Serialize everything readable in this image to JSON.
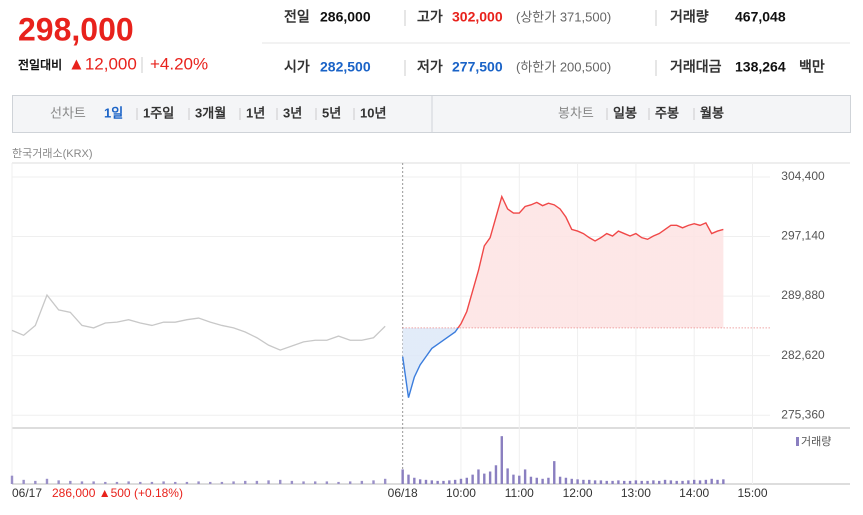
{
  "header": {
    "price": "298,000",
    "change_label": "전일대비",
    "change": "▲12,000",
    "change_pct": "+4.20%",
    "stats": [
      {
        "label": "전일",
        "value": "286,000"
      },
      {
        "label": "고가",
        "value": "302,000",
        "note": "(상한가 371,500)"
      },
      {
        "label": "거래량",
        "value": "467,048"
      },
      {
        "label": "시가",
        "value": "282,500"
      },
      {
        "label": "저가",
        "value": "277,500",
        "note": "(하한가 200,500)"
      },
      {
        "label": "거래대금",
        "value": "138,264",
        "unit": "백만"
      }
    ]
  },
  "tabs": {
    "left_title": "선차트",
    "left": [
      "1일",
      "1주일",
      "3개월",
      "1년",
      "3년",
      "5년",
      "10년"
    ],
    "selected": "1일",
    "right_title": "봉차트",
    "right": [
      "일봉",
      "주봉",
      "월봉"
    ]
  },
  "chart_data": [
    {
      "type": "line",
      "source": "한국거래소(KRX)",
      "annotation": "286,000 ▲500 (+0.18%)",
      "xlim": [
        2.3,
        15.3
      ],
      "xticks": [
        {
          "value": 2.3,
          "label": "06/17"
        },
        {
          "value": 9,
          "label": "06/18"
        },
        {
          "value": 10,
          "label": "10:00"
        },
        {
          "value": 11,
          "label": "11:00"
        },
        {
          "value": 12,
          "label": "12:00"
        },
        {
          "value": 13,
          "label": "13:00"
        },
        {
          "value": 14,
          "label": "14:00"
        },
        {
          "value": 15,
          "label": "15:00"
        }
      ],
      "ylim": [
        273800,
        306100
      ],
      "yticks": [
        {
          "value": 304400,
          "label": "304,400"
        },
        {
          "value": 297140,
          "label": "297,140"
        },
        {
          "value": 289880,
          "label": "289,880"
        },
        {
          "value": 282620,
          "label": "282,620"
        },
        {
          "value": 275360,
          "label": "275,360"
        }
      ],
      "grid": true,
      "reference": 286000,
      "reference_color": "#e77b7b",
      "series": [
        {
          "color": "#c8c8c8",
          "x": [
            2.3,
            2.5,
            2.7,
            2.9,
            3.1,
            3.3,
            3.5,
            3.7,
            3.9,
            4.1,
            4.3,
            4.5,
            4.7,
            4.9,
            5.1,
            5.3,
            5.5,
            5.7,
            5.9,
            6.1,
            6.3,
            6.5,
            6.7,
            6.9,
            7.1,
            7.3,
            7.5,
            7.7,
            7.9,
            8.1,
            8.3,
            8.5,
            8.7
          ],
          "values": [
            285700,
            285100,
            286300,
            290000,
            288200,
            287900,
            286300,
            286000,
            286600,
            286700,
            287000,
            286600,
            286300,
            286700,
            286700,
            287000,
            287200,
            286700,
            286300,
            286000,
            285500,
            284800,
            283900,
            283300,
            283800,
            284300,
            284500,
            284500,
            285000,
            284500,
            284500,
            284800,
            286200
          ]
        },
        {
          "color_up": "#f04848",
          "color_down": "#3b7ddd",
          "fill_up": "#fde3e3",
          "fill_down": "#dde8f8",
          "x": [
            9.0,
            9.1,
            9.2,
            9.3,
            9.4,
            9.5,
            9.6,
            9.7,
            9.8,
            9.9,
            10.0,
            10.1,
            10.2,
            10.3,
            10.4,
            10.5,
            10.6,
            10.7,
            10.8,
            10.9,
            11.0,
            11.1,
            11.2,
            11.3,
            11.4,
            11.5,
            11.6,
            11.7,
            11.8,
            11.9,
            12.0,
            12.1,
            12.2,
            12.3,
            12.4,
            12.5,
            12.6,
            12.7,
            12.8,
            12.9,
            13.0,
            13.1,
            13.2,
            13.3,
            13.4,
            13.5,
            13.6,
            13.7,
            13.8,
            13.9,
            14.0,
            14.1,
            14.2,
            14.3,
            14.4,
            14.5
          ],
          "values": [
            282500,
            277500,
            280000,
            281500,
            282500,
            283500,
            284000,
            284500,
            285000,
            285500,
            286500,
            288000,
            290500,
            293000,
            296000,
            297000,
            299500,
            302000,
            300500,
            300000,
            300000,
            300800,
            301000,
            301300,
            300900,
            301200,
            301000,
            300500,
            299500,
            298000,
            297800,
            297500,
            297000,
            296600,
            297000,
            297500,
            297200,
            297800,
            297500,
            297200,
            297500,
            297000,
            296800,
            297200,
            297500,
            298000,
            298500,
            298500,
            298200,
            298500,
            298700,
            298500,
            298800,
            297500,
            297800,
            298000
          ]
        }
      ]
    },
    {
      "type": "bar",
      "label": "거래량",
      "xlim": [
        2.3,
        15.3
      ],
      "ylim": [
        0,
        50000
      ],
      "series": [
        {
          "color": "#9a90c8",
          "x": [
            2.3,
            2.5,
            2.7,
            2.9,
            3.1,
            3.3,
            3.5,
            3.7,
            3.9,
            4.1,
            4.3,
            4.5,
            4.7,
            4.9,
            5.1,
            5.3,
            5.5,
            5.7,
            5.9,
            6.1,
            6.3,
            6.5,
            6.7,
            6.9,
            7.1,
            7.3,
            7.5,
            7.7,
            7.9,
            8.1,
            8.3,
            8.5,
            8.7
          ],
          "values": [
            8000,
            4000,
            3000,
            5000,
            3500,
            3000,
            2500,
            2500,
            2000,
            2000,
            2500,
            2000,
            2000,
            2500,
            2000,
            2000,
            2500,
            2000,
            2000,
            2500,
            3000,
            3000,
            3500,
            4000,
            3000,
            2500,
            2500,
            2500,
            2000,
            2500,
            3000,
            3500,
            5000
          ]
        },
        {
          "color": "#8a7fc0",
          "x": [
            9.0,
            9.1,
            9.2,
            9.3,
            9.4,
            9.5,
            9.6,
            9.7,
            9.8,
            9.9,
            10.0,
            10.1,
            10.2,
            10.3,
            10.4,
            10.5,
            10.6,
            10.7,
            10.8,
            10.9,
            11.0,
            11.1,
            11.2,
            11.3,
            11.4,
            11.5,
            11.6,
            11.7,
            11.8,
            11.9,
            12.0,
            12.1,
            12.2,
            12.3,
            12.4,
            12.5,
            12.6,
            12.7,
            12.8,
            12.9,
            13.0,
            13.1,
            13.2,
            13.3,
            13.4,
            13.5,
            13.6,
            13.7,
            13.8,
            13.9,
            14.0,
            14.1,
            14.2,
            14.3,
            14.4,
            14.5
          ],
          "values": [
            14000,
            9000,
            6000,
            4500,
            4000,
            3500,
            3000,
            3000,
            3500,
            4000,
            5000,
            6000,
            9000,
            14000,
            10000,
            12000,
            18000,
            46000,
            15000,
            9000,
            8000,
            14000,
            7000,
            6000,
            5000,
            6000,
            22000,
            7000,
            6000,
            5000,
            4500,
            4000,
            4000,
            3500,
            3500,
            3000,
            3000,
            3500,
            3000,
            3000,
            3500,
            3000,
            3000,
            3500,
            3000,
            4000,
            3500,
            3000,
            3000,
            3500,
            4000,
            3500,
            4000,
            5000,
            4000,
            4500
          ]
        }
      ]
    }
  ]
}
